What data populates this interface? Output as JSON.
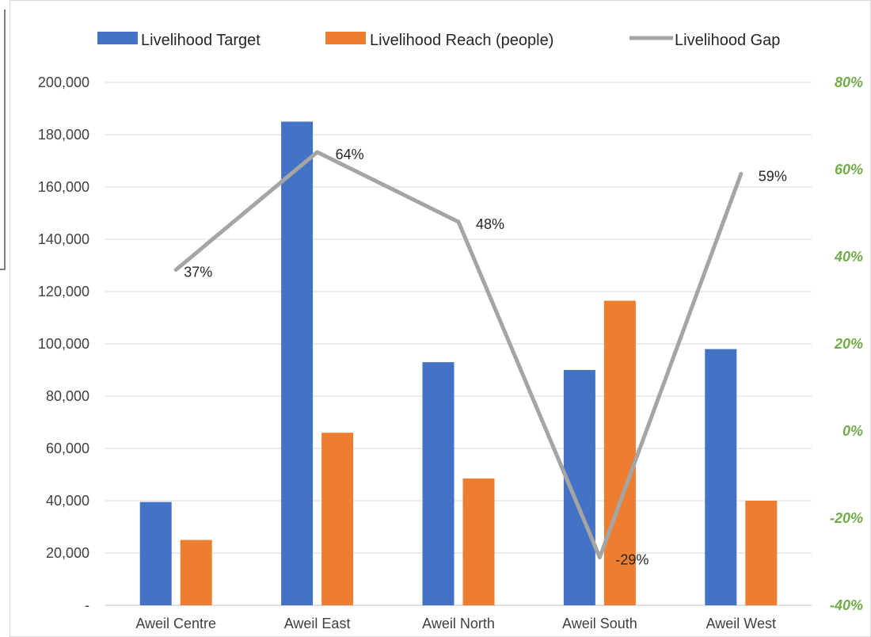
{
  "colors": {
    "target": "#4472C4",
    "reach": "#ED7D31",
    "gap": "#A5A5A5",
    "right_axis": "#70AD47",
    "grid": "#D9D9D9",
    "text": "#404040"
  },
  "chart_data": {
    "type": "bar",
    "categories": [
      "Aweil Centre",
      "Aweil East",
      "Aweil North",
      "Aweil South",
      "Aweil West"
    ],
    "series": [
      {
        "name": "Livelihood Target",
        "type": "bar",
        "axis": "left",
        "values": [
          39500,
          185000,
          93000,
          90000,
          98000
        ]
      },
      {
        "name": "Livelihood Reach (people)",
        "type": "bar",
        "axis": "left",
        "values": [
          25000,
          66000,
          48500,
          116500,
          40000
        ]
      },
      {
        "name": "Livelihood Gap",
        "type": "line",
        "axis": "right",
        "values": [
          0.37,
          0.64,
          0.48,
          -0.29,
          0.59
        ],
        "data_labels": [
          "37%",
          "64%",
          "48%",
          "-29%",
          "59%"
        ]
      }
    ],
    "y_left": {
      "ylim": [
        0,
        200000
      ],
      "ticks": [
        0,
        20000,
        40000,
        60000,
        80000,
        100000,
        120000,
        140000,
        160000,
        180000,
        200000
      ],
      "tick_labels": [
        "-",
        "20,000",
        "40,000",
        "60,000",
        "80,000",
        "100,000",
        "120,000",
        "140,000",
        "160,000",
        "180,000",
        "200,000"
      ]
    },
    "y_right": {
      "ylim": [
        -0.4,
        0.8
      ],
      "ticks": [
        -0.4,
        -0.2,
        0,
        0.2,
        0.4,
        0.6,
        0.8
      ],
      "tick_labels": [
        "-40%",
        "-20%",
        "0%",
        "20%",
        "40%",
        "60%",
        "80%"
      ]
    },
    "grid": true,
    "legend": "top"
  }
}
